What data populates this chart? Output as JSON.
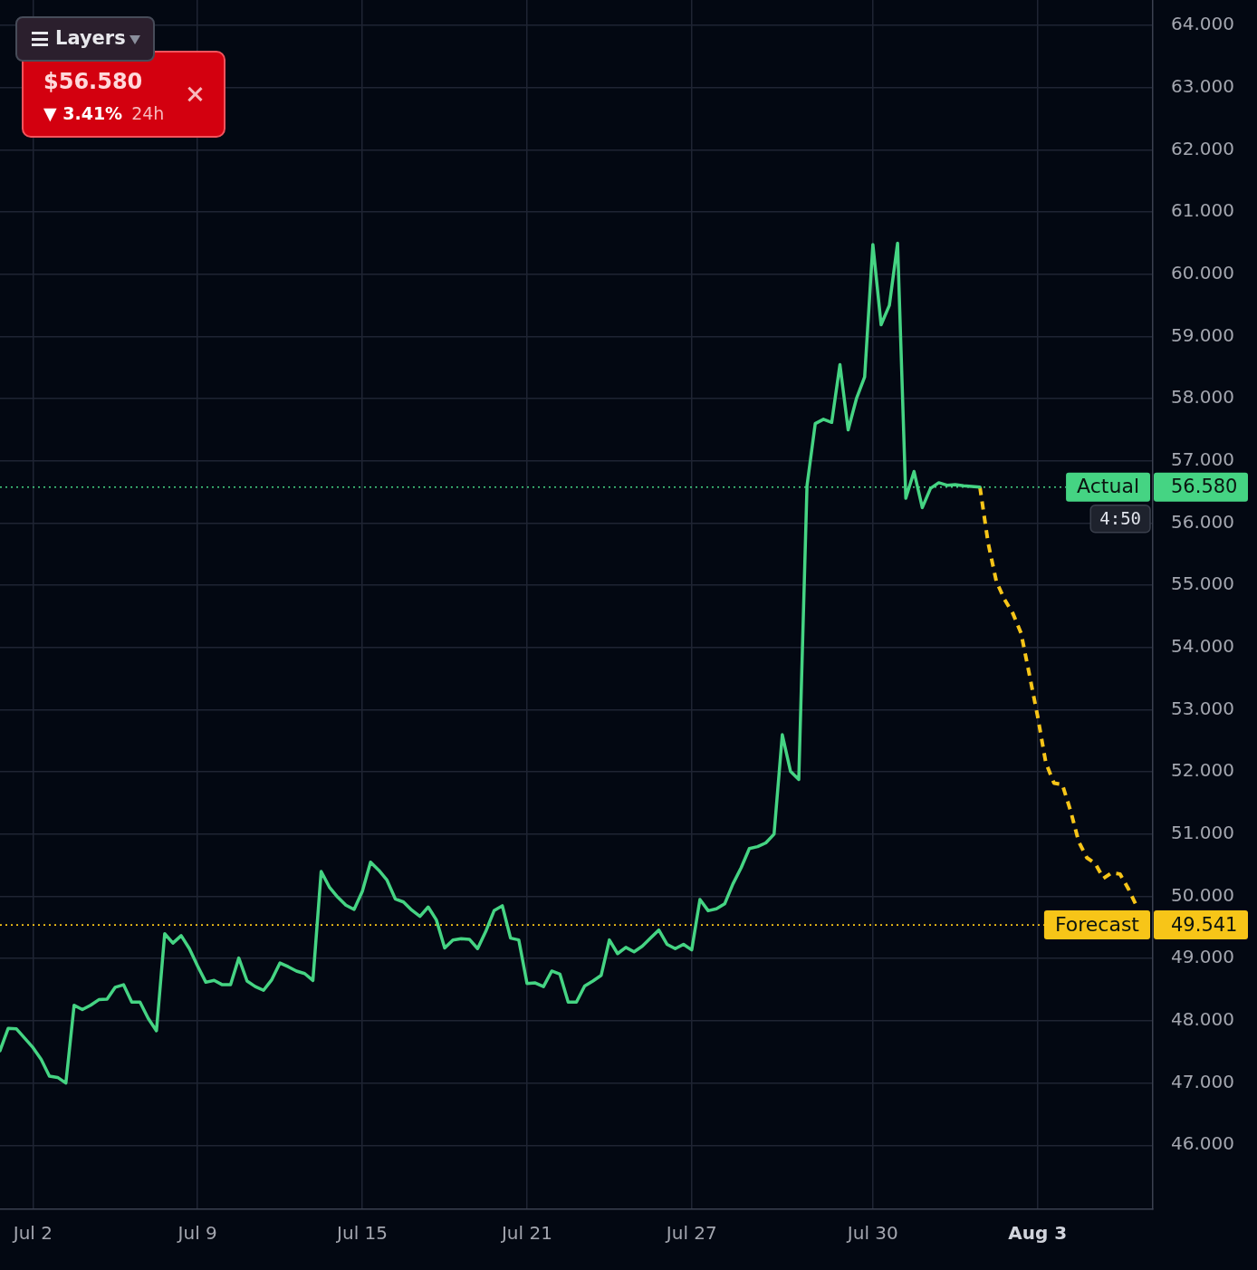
{
  "chart_data": {
    "type": "line",
    "categories": [
      null,
      null,
      null,
      null,
      "Jul 2",
      null,
      null,
      null,
      null,
      null,
      null,
      null,
      null,
      null,
      null,
      null,
      null,
      null,
      null,
      null,
      null,
      null,
      null,
      null,
      "Jul 9",
      null,
      null,
      null,
      null,
      null,
      null,
      null,
      null,
      null,
      null,
      null,
      null,
      null,
      null,
      null,
      null,
      null,
      null,
      null,
      "Jul 15",
      null,
      null,
      null,
      null,
      null,
      null,
      null,
      null,
      null,
      null,
      null,
      null,
      null,
      null,
      null,
      null,
      null,
      null,
      null,
      "Jul 21",
      null,
      null,
      null,
      null,
      null,
      null,
      null,
      null,
      null,
      null,
      null,
      null,
      null,
      null,
      null,
      null,
      null,
      null,
      null,
      "Jul 27",
      null,
      null,
      null,
      null,
      null,
      null,
      null,
      null,
      null,
      null,
      null,
      null,
      null,
      null,
      null,
      null,
      null,
      null,
      null,
      null,
      null,
      "Jul 30",
      null,
      null,
      null,
      null,
      null,
      null,
      null,
      null,
      null,
      null,
      null,
      null,
      null,
      null,
      null,
      null,
      null,
      null,
      null,
      "Aug 3",
      null,
      null,
      null,
      null,
      null,
      null,
      null,
      null,
      null,
      null,
      null,
      null,
      null,
      null
    ],
    "series": [
      {
        "color": "#45d483",
        "line_style": "solid",
        "values": [
          47.52,
          47.88,
          47.87,
          47.72,
          47.57,
          47.38,
          47.11,
          47.09,
          47.0,
          48.25,
          48.18,
          48.25,
          48.34,
          48.35,
          48.54,
          48.58,
          48.3,
          48.3,
          48.04,
          47.84,
          49.4,
          49.25,
          49.37,
          49.16,
          48.88,
          48.62,
          48.65,
          48.58,
          48.58,
          49.01,
          48.64,
          48.55,
          48.49,
          48.66,
          48.93,
          48.87,
          48.8,
          48.76,
          48.65,
          50.4,
          50.15,
          49.99,
          49.86,
          49.79,
          50.08,
          50.55,
          50.42,
          50.26,
          49.96,
          49.91,
          49.78,
          49.68,
          49.83,
          49.62,
          49.17,
          49.3,
          49.32,
          49.31,
          49.16,
          49.44,
          49.77,
          49.85,
          49.33,
          49.3,
          48.6,
          48.61,
          48.55,
          48.8,
          48.75,
          48.3,
          48.3,
          48.56,
          48.64,
          48.73,
          49.3,
          49.08,
          49.18,
          49.11,
          49.2,
          49.33,
          49.46,
          49.23,
          49.16,
          49.23,
          49.14,
          49.95,
          49.77,
          49.8,
          49.88,
          50.2,
          50.46,
          50.77,
          50.8,
          50.86,
          51.0,
          52.6,
          52.01,
          51.88,
          56.6,
          57.6,
          57.67,
          57.62,
          58.55,
          57.5,
          58.0,
          58.35,
          60.48,
          59.19,
          59.5,
          60.5,
          56.4,
          56.83,
          56.25,
          56.56,
          56.65,
          56.61,
          56.62,
          56.6,
          56.59,
          56.58,
          null,
          null,
          null,
          null,
          null,
          null,
          null,
          null,
          null,
          null,
          null,
          null,
          null,
          null,
          null,
          null,
          null,
          null,
          null,
          null,
          null
        ]
      },
      {
        "color": "#f7c518",
        "line_style": "dashed",
        "values": [
          null,
          null,
          null,
          null,
          null,
          null,
          null,
          null,
          null,
          null,
          null,
          null,
          null,
          null,
          null,
          null,
          null,
          null,
          null,
          null,
          null,
          null,
          null,
          null,
          null,
          null,
          null,
          null,
          null,
          null,
          null,
          null,
          null,
          null,
          null,
          null,
          null,
          null,
          null,
          null,
          null,
          null,
          null,
          null,
          null,
          null,
          null,
          null,
          null,
          null,
          null,
          null,
          null,
          null,
          null,
          null,
          null,
          null,
          null,
          null,
          null,
          null,
          null,
          null,
          null,
          null,
          null,
          null,
          null,
          null,
          null,
          null,
          null,
          null,
          null,
          null,
          null,
          null,
          null,
          null,
          null,
          null,
          null,
          null,
          null,
          null,
          null,
          null,
          null,
          null,
          null,
          null,
          null,
          null,
          null,
          null,
          null,
          null,
          null,
          null,
          null,
          null,
          null,
          null,
          null,
          null,
          null,
          null,
          null,
          null,
          null,
          null,
          null,
          null,
          null,
          null,
          null,
          null,
          null,
          56.58,
          55.68,
          55.06,
          54.77,
          54.55,
          54.23,
          53.57,
          52.9,
          52.15,
          51.82,
          51.8,
          51.38,
          50.88,
          50.62,
          50.53,
          50.29,
          50.38,
          50.36,
          50.13,
          49.85,
          null,
          null
        ]
      }
    ],
    "ylim": [
      44.97,
      64.41
    ],
    "yticks": [
      {
        "value": 46,
        "label": "46.000"
      },
      {
        "value": 47,
        "label": "47.000"
      },
      {
        "value": 48,
        "label": "48.000"
      },
      {
        "value": 49,
        "label": "49.000"
      },
      {
        "value": 50,
        "label": "50.000"
      },
      {
        "value": 51,
        "label": "51.000"
      },
      {
        "value": 52,
        "label": "52.000"
      },
      {
        "value": 53,
        "label": "53.000"
      },
      {
        "value": 54,
        "label": "54.000"
      },
      {
        "value": 55,
        "label": "55.000"
      },
      {
        "value": 56,
        "label": "56.000"
      },
      {
        "value": 57,
        "label": "57.000"
      },
      {
        "value": 58,
        "label": "58.000"
      },
      {
        "value": 59,
        "label": "59.000"
      },
      {
        "value": 60,
        "label": "60.000"
      },
      {
        "value": 61,
        "label": "61.000"
      },
      {
        "value": 62,
        "label": "62.000"
      },
      {
        "value": 63,
        "label": "63.000"
      },
      {
        "value": 64,
        "label": "64.000"
      }
    ],
    "grid": true,
    "ref_lines": [
      {
        "axis": "y",
        "value": 56.58,
        "label": "Actual",
        "color": "#45d483",
        "line_style": "dotted"
      },
      {
        "axis": "y",
        "value": 49.541,
        "label": "Forecast",
        "color": "#f7c518",
        "line_style": "dotted"
      }
    ],
    "annotations": [
      "Layers",
      "$56.580",
      "▼ 3.41%",
      "24h",
      "4:50",
      "56.580",
      "49.541"
    ]
  }
}
